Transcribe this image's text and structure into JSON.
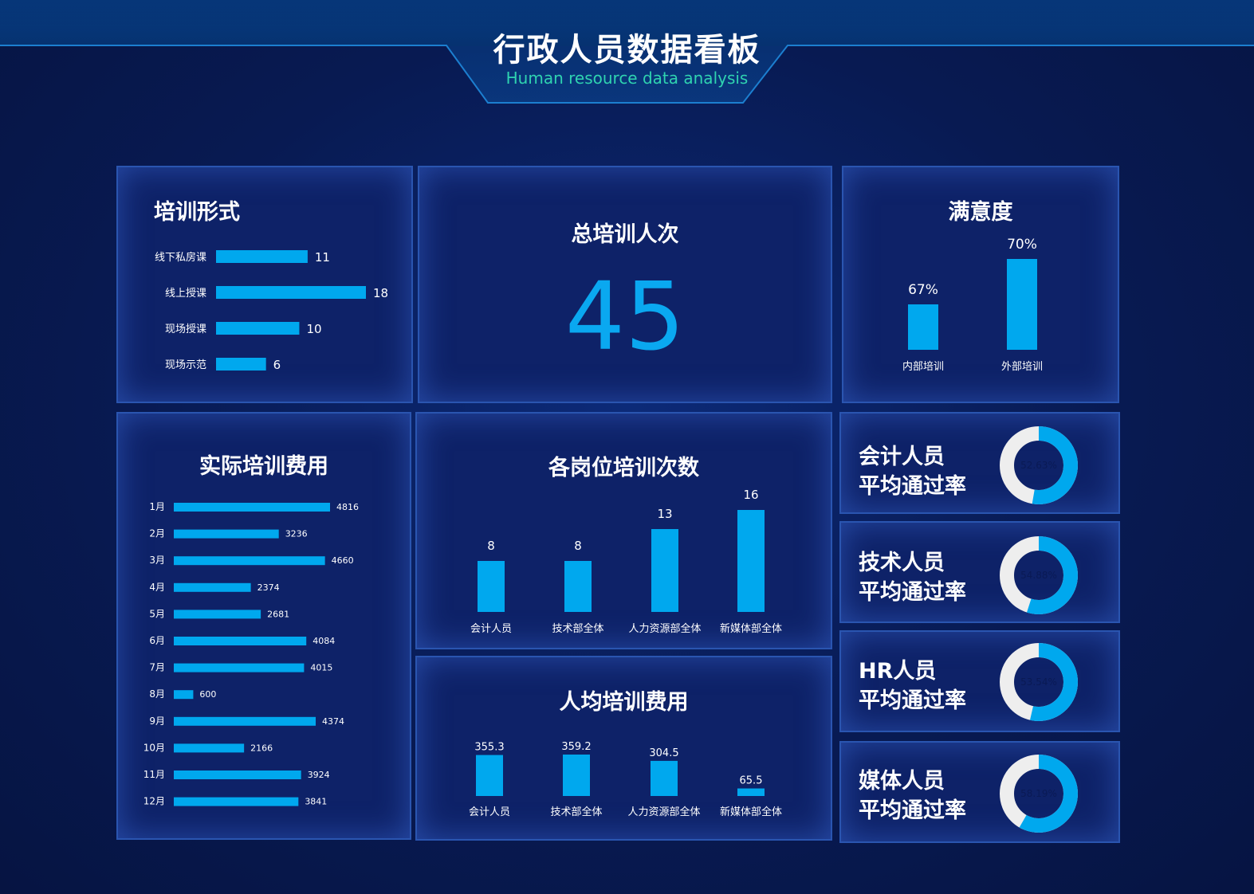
{
  "header": {
    "title": "行政人员数据看板",
    "subtitle": "Human resource data analysis"
  },
  "colors": {
    "accent": "#00a8ee",
    "background": "#0a1a55",
    "panel_border": "#2a55b0",
    "donut_track": "#eeeeee",
    "subtitle": "#2fd3b0"
  },
  "training_form": {
    "title": "培训形式",
    "chart_data": {
      "type": "bar",
      "orientation": "horizontal",
      "categories": [
        "线下私房课",
        "线上授课",
        "现场授课",
        "现场示范"
      ],
      "values": [
        11,
        18,
        10,
        6
      ]
    }
  },
  "total": {
    "title": "总培训人次",
    "value": "45"
  },
  "satisfaction": {
    "title": "满意度",
    "chart_data": {
      "type": "bar",
      "categories": [
        "内部培训",
        "外部培训"
      ],
      "values": [
        67,
        70
      ],
      "labels": [
        "67%",
        "70%"
      ]
    }
  },
  "actual_cost": {
    "title": "实际培训费用",
    "chart_data": {
      "type": "bar",
      "orientation": "horizontal",
      "categories": [
        "1月",
        "2月",
        "3月",
        "4月",
        "5月",
        "6月",
        "7月",
        "8月",
        "9月",
        "10月",
        "11月",
        "12月"
      ],
      "values": [
        4816,
        3236,
        4660,
        2374,
        2681,
        4084,
        4015,
        600,
        4374,
        2166,
        3924,
        3841
      ]
    }
  },
  "position_count": {
    "title": "各岗位培训次数",
    "chart_data": {
      "type": "bar",
      "categories": [
        "会计人员",
        "技术部全体",
        "人力资源部全体",
        "新媒体部全体"
      ],
      "values": [
        8,
        8,
        13,
        16
      ]
    }
  },
  "per_capita": {
    "title": "人均培训费用",
    "chart_data": {
      "type": "bar",
      "categories": [
        "会计人员",
        "技术部全体",
        "人力资源部全体",
        "新媒体部全体"
      ],
      "values": [
        355.3,
        359.2,
        304.5,
        65.5
      ]
    }
  },
  "pass_rates": [
    {
      "line1": "会计人员",
      "line2": "平均通过率",
      "label": "52.63%",
      "value": 52.63
    },
    {
      "line1": "技术人员",
      "line2": "平均通过率",
      "label": "54.88%",
      "value": 54.88
    },
    {
      "line1": "HR人员",
      "line2": "平均通过率",
      "label": "53.54%",
      "value": 53.54
    },
    {
      "line1": "媒体人员",
      "line2": "平均通过率",
      "label": "58.19%",
      "value": 58.19
    }
  ]
}
